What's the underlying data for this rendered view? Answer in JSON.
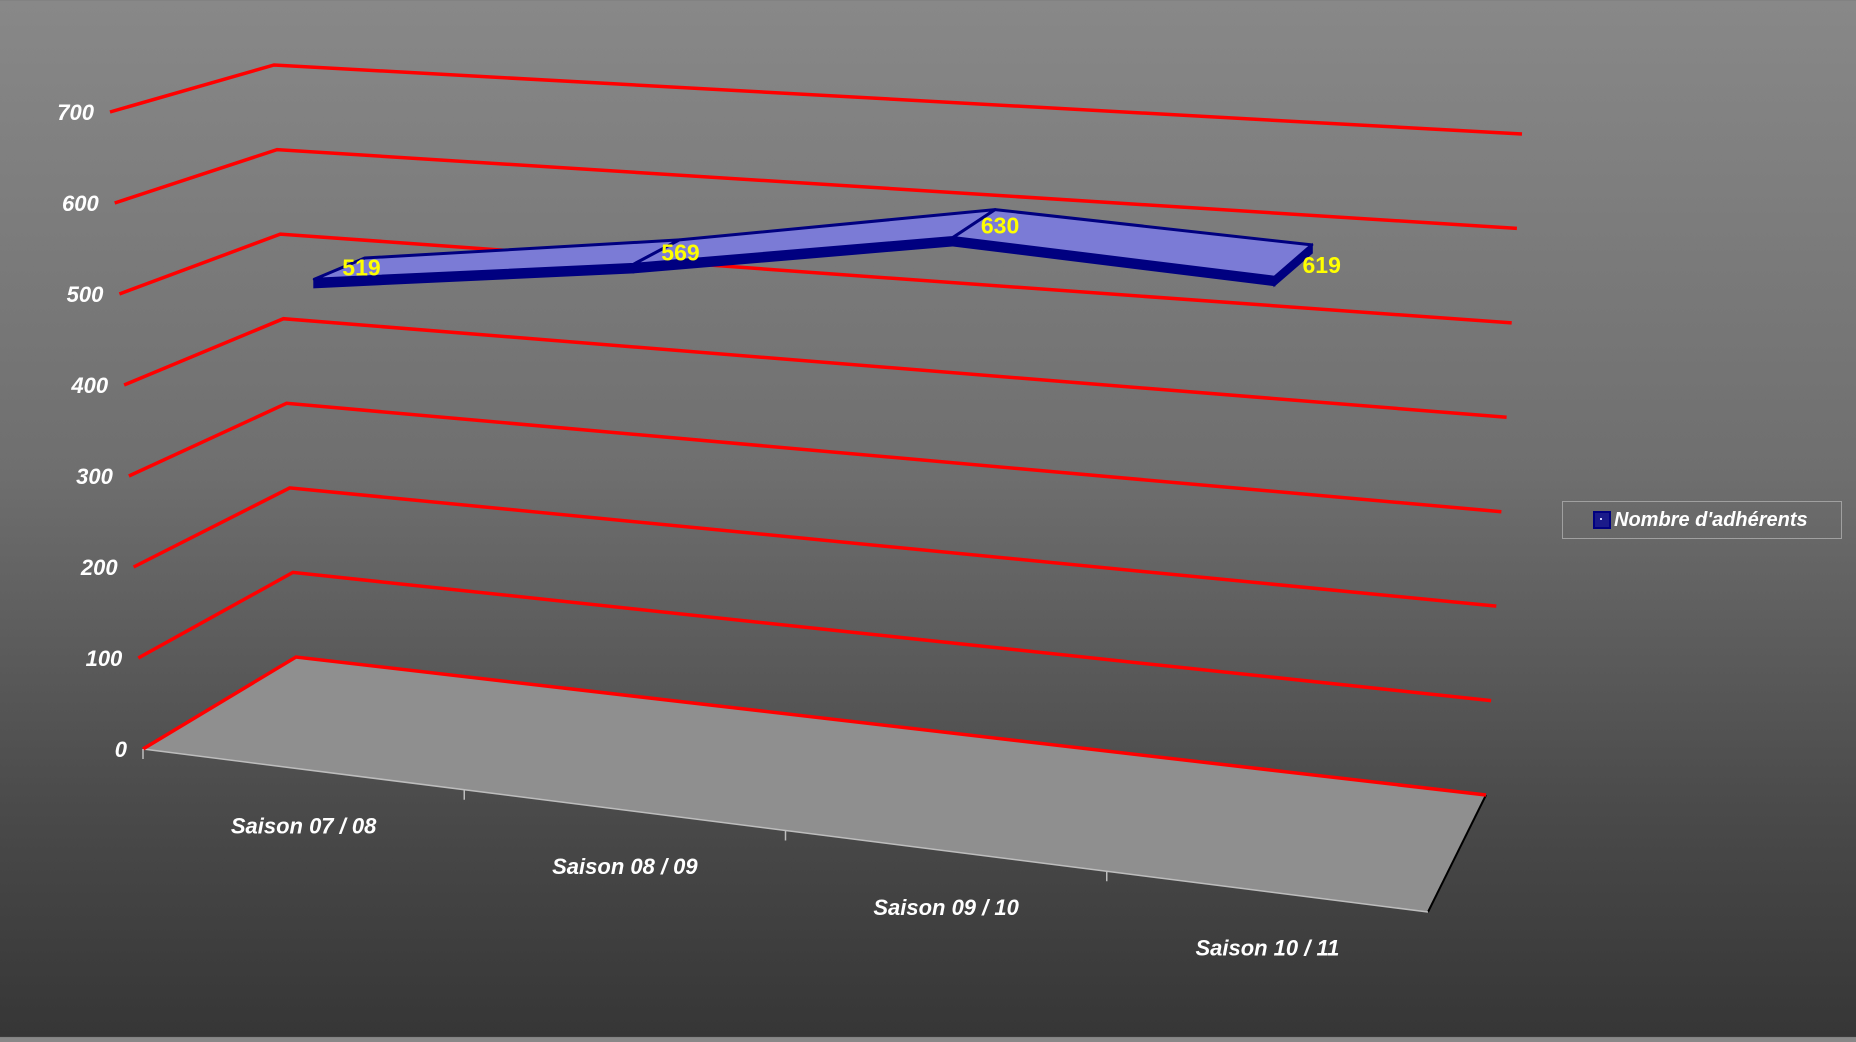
{
  "chart_data": {
    "type": "line",
    "variant": "3d-ribbon",
    "categories": [
      "Saison 07 / 08",
      "Saison 08 / 09",
      "Saison 09 / 10",
      "Saison 10 / 11"
    ],
    "series": [
      {
        "name": "Nombre d'adhérents",
        "values": [
          519,
          569,
          630,
          619
        ]
      }
    ],
    "data_labels": [
      "519",
      "569",
      "630",
      "619"
    ],
    "y_ticks": [
      "0",
      "100",
      "200",
      "300",
      "400",
      "500",
      "600",
      "700"
    ],
    "ylim": [
      0,
      700
    ],
    "grid": true,
    "legend": {
      "position": "right",
      "label": "Nombre d'adhérents"
    },
    "colors": {
      "gridline": "#ff0000",
      "floor": "#8f8f8f",
      "ribbon_top": "#7b7bd6",
      "ribbon_edge": "#000080",
      "data_label": "#ffff00",
      "text": "#ffffff"
    }
  }
}
